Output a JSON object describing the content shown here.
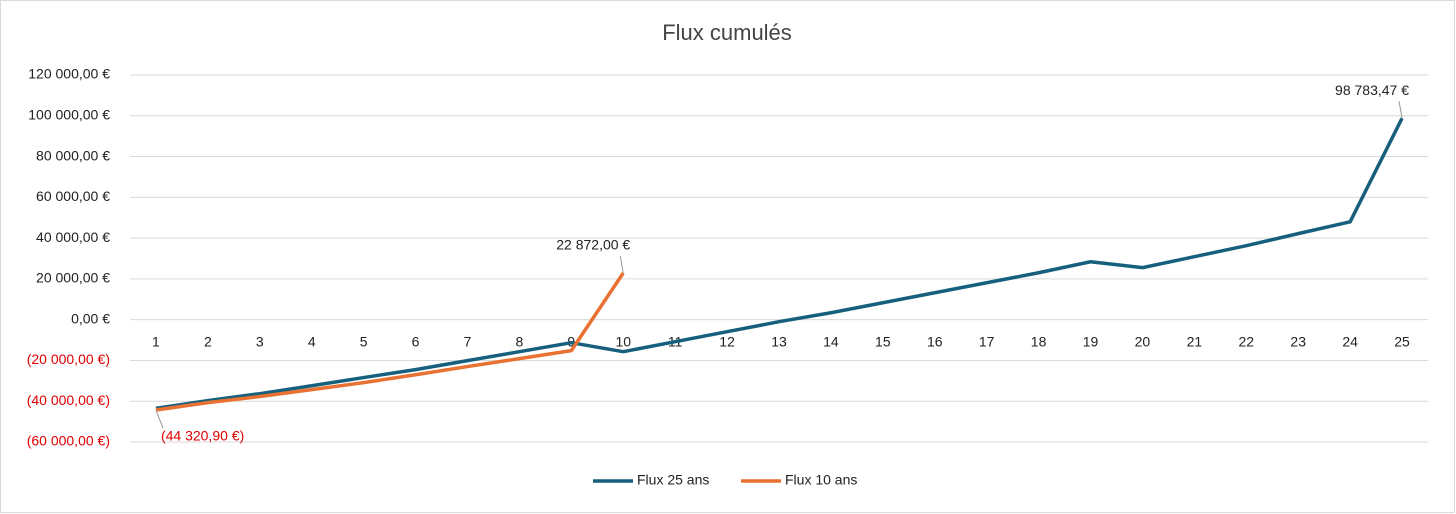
{
  "chart_data": {
    "type": "line",
    "title": "Flux cumulés",
    "categories": [
      "1",
      "2",
      "3",
      "4",
      "5",
      "6",
      "7",
      "8",
      "9",
      "10",
      "11",
      "12",
      "13",
      "14",
      "15",
      "16",
      "17",
      "18",
      "19",
      "20",
      "21",
      "22",
      "23",
      "24",
      "25"
    ],
    "series": [
      {
        "name": "Flux 25 ans",
        "color": "#17607d",
        "values": [
          -43500,
          -39700,
          -36300,
          -32400,
          -28400,
          -24500,
          -20100,
          -15700,
          -11300,
          -15700,
          -10800,
          -5900,
          -1000,
          3400,
          8300,
          13200,
          18100,
          23000,
          28400,
          25500,
          30900,
          36300,
          42200,
          48000,
          98783.47
        ],
        "value_labels": [
          null,
          null,
          null,
          null,
          null,
          null,
          null,
          null,
          null,
          null,
          null,
          null,
          null,
          null,
          null,
          null,
          null,
          null,
          null,
          null,
          null,
          null,
          null,
          null,
          "98 783,47 €"
        ]
      },
      {
        "name": "Flux 10 ans",
        "color": "#e97132",
        "values": [
          -44320.9,
          -40700,
          -37700,
          -34300,
          -30900,
          -27000,
          -23000,
          -19100,
          -15200,
          22872,
          null,
          null,
          null,
          null,
          null,
          null,
          null,
          null,
          null,
          null,
          null,
          null,
          null,
          null,
          null
        ],
        "value_labels": [
          "(44 320,90 €)",
          null,
          null,
          null,
          null,
          null,
          null,
          null,
          null,
          "22 872,00 €",
          null,
          null,
          null,
          null,
          null,
          null,
          null,
          null,
          null,
          null,
          null,
          null,
          null,
          null,
          null
        ]
      }
    ],
    "ylim": [
      -60000,
      120000
    ],
    "yticks": [
      {
        "value": -60000,
        "label": "(60 000,00 €)"
      },
      {
        "value": -40000,
        "label": "(40 000,00 €)"
      },
      {
        "value": -20000,
        "label": "(20 000,00 €)"
      },
      {
        "value": 0,
        "label": "0,00 €"
      },
      {
        "value": 20000,
        "label": "20 000,00 €"
      },
      {
        "value": 40000,
        "label": "40 000,00 €"
      },
      {
        "value": 60000,
        "label": "60 000,00 €"
      },
      {
        "value": 80000,
        "label": "80 000,00 €"
      },
      {
        "value": 100000,
        "label": "100 000,00 €"
      },
      {
        "value": 120000,
        "label": "120 000,00 €"
      }
    ],
    "grid": true,
    "negative_color": "#e00000",
    "legend": "bottom"
  }
}
